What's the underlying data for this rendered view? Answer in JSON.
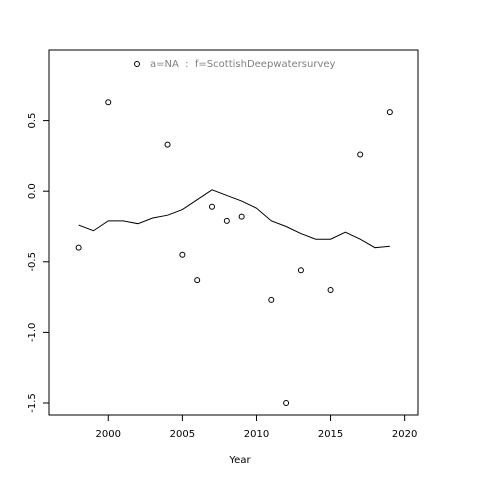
{
  "chart_data": {
    "type": "scatter",
    "x_label": "Year",
    "xlim": [
      1996.0,
      2020.9
    ],
    "ylim": [
      -1.585,
      1.0
    ],
    "xticks": [
      2000,
      2005,
      2010,
      2015,
      2020
    ],
    "yticks": [
      0.5,
      {
        "value": 0,
        "label": "0.0"
      },
      -0.5,
      {
        "value": -1,
        "label": "-1.0"
      },
      -1.5
    ],
    "legend_position": "top",
    "series": [
      {
        "name": "a=NA  :  f=ScottishDeepwatersurvey",
        "type": "scatter",
        "color": "#000000",
        "x": [
          1998,
          2000,
          2004,
          2005,
          2006,
          2007,
          2008,
          2009,
          2011,
          2012,
          2013,
          2015,
          2017,
          2019
        ],
        "values": [
          -0.4,
          0.63,
          0.33,
          -0.45,
          -0.63,
          -0.11,
          -0.21,
          -0.18,
          -0.77,
          -1.5,
          -0.56,
          -0.7,
          0.26,
          0.56
        ]
      },
      {
        "type": "line",
        "color": "#000000",
        "x": [
          1998,
          1999,
          2000,
          2001,
          2002,
          2003,
          2004,
          2005,
          2006,
          2007,
          2008,
          2009,
          2010,
          2011,
          2012,
          2013,
          2014,
          2015,
          2016,
          2017,
          2018,
          2019
        ],
        "values": [
          -0.24,
          -0.28,
          -0.21,
          -0.21,
          -0.23,
          -0.19,
          -0.17,
          -0.13,
          -0.06,
          0.01,
          -0.03,
          -0.07,
          -0.12,
          -0.21,
          -0.25,
          -0.3,
          -0.34,
          -0.34,
          -0.29,
          -0.34,
          -0.4,
          -0.39
        ]
      }
    ]
  }
}
